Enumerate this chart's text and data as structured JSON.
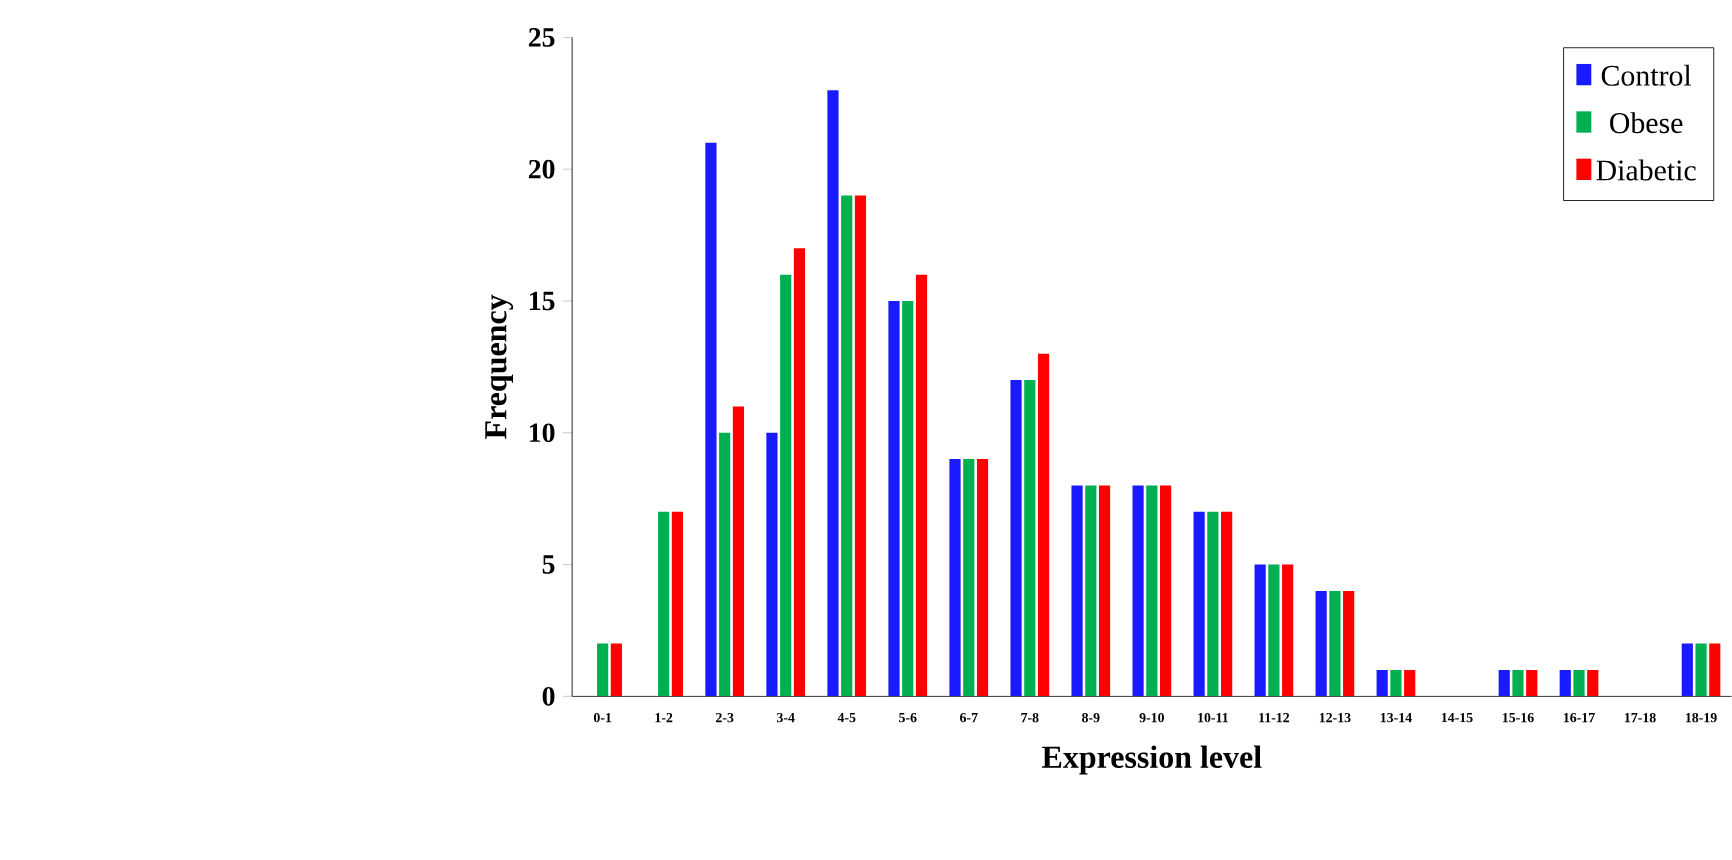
{
  "chart_data": {
    "type": "bar",
    "xlabel": "Expression level",
    "ylabel": "Frequency",
    "categories": [
      "0-1",
      "1-2",
      "2-3",
      "3-4",
      "4-5",
      "5-6",
      "6-7",
      "7-8",
      "8-9",
      "9-10",
      "10-11",
      "11-12",
      "12-13",
      "13-14",
      "14-15",
      "15-16",
      "16-17",
      "17-18",
      "18-19"
    ],
    "series": [
      {
        "name": "Control",
        "color": "#1a1aff",
        "values": [
          0,
          0,
          21,
          10,
          23,
          15,
          9,
          12,
          8,
          8,
          7,
          5,
          4,
          1,
          0,
          1,
          1,
          0,
          2
        ]
      },
      {
        "name": "Obese",
        "color": "#00b050",
        "values": [
          2,
          7,
          10,
          16,
          19,
          15,
          9,
          12,
          8,
          8,
          7,
          5,
          4,
          1,
          0,
          1,
          1,
          0,
          2
        ]
      },
      {
        "name": "Diabetic",
        "color": "#ff0000",
        "values": [
          2,
          7,
          11,
          17,
          19,
          16,
          9,
          13,
          8,
          8,
          7,
          5,
          4,
          1,
          0,
          1,
          1,
          0,
          2
        ]
      }
    ],
    "ylim": [
      0,
      25
    ],
    "yticks": [
      0,
      5,
      10,
      15,
      20,
      25
    ],
    "grid": false,
    "legend": "top right"
  }
}
